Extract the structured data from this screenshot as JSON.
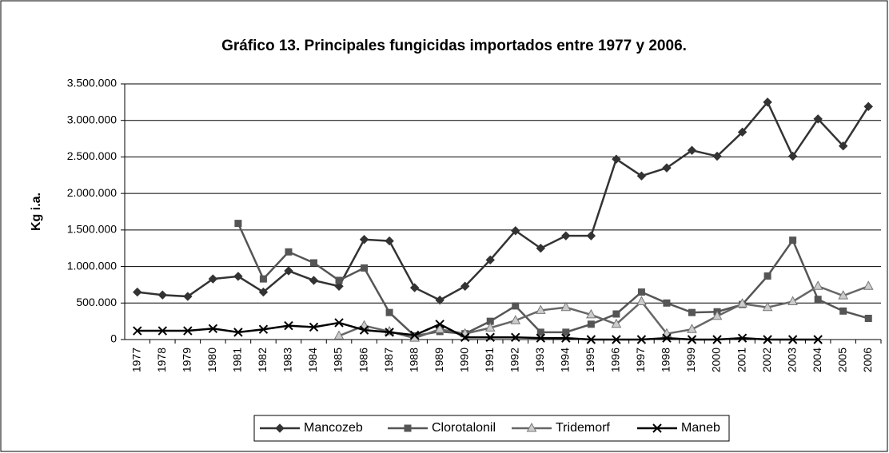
{
  "chart_data": {
    "type": "line",
    "title": "Gráfico 13. Principales fungicidas importados entre 1977 y 2006.",
    "y_label": "Kg i.a.",
    "categories": [
      "1977",
      "1978",
      "1979",
      "1980",
      "1981",
      "1982",
      "1983",
      "1984",
      "1985",
      "1986",
      "1987",
      "1988",
      "1989",
      "1990",
      "1991",
      "1992",
      "1993",
      "1994",
      "1995",
      "1996",
      "1997",
      "1998",
      "1999",
      "2000",
      "2001",
      "2002",
      "2003",
      "2004",
      "2005",
      "2006"
    ],
    "series": [
      {
        "name": "Mancozeb",
        "color": "#333333",
        "marker": "diamond",
        "marker_fill": "#333333",
        "values": [
          650000,
          610000,
          590000,
          830000,
          865000,
          650000,
          940000,
          810000,
          730000,
          1370000,
          1350000,
          710000,
          540000,
          730000,
          1090000,
          1490000,
          1250000,
          1420000,
          1420000,
          2470000,
          2240000,
          2350000,
          2590000,
          2510000,
          2840000,
          3250000,
          2510000,
          3020000,
          2650000,
          3190000
        ]
      },
      {
        "name": "Clorotalonil",
        "color": "#555555",
        "marker": "square",
        "marker_fill": "#555555",
        "values": [
          null,
          null,
          null,
          null,
          1590000,
          830000,
          1200000,
          1050000,
          810000,
          980000,
          370000,
          50000,
          110000,
          80000,
          250000,
          460000,
          100000,
          100000,
          210000,
          350000,
          650000,
          500000,
          370000,
          380000,
          480000,
          870000,
          1360000,
          550000,
          390000,
          290000
        ]
      },
      {
        "name": "Tridemorf",
        "color": "#666666",
        "marker": "triangle",
        "marker_fill": "#cccccc",
        "values": [
          null,
          null,
          null,
          null,
          null,
          null,
          null,
          null,
          50000,
          190000,
          110000,
          20000,
          140000,
          80000,
          160000,
          260000,
          400000,
          440000,
          340000,
          210000,
          520000,
          80000,
          140000,
          320000,
          490000,
          440000,
          520000,
          730000,
          600000,
          730000
        ]
      },
      {
        "name": "Maneb",
        "color": "#000000",
        "marker": "x",
        "marker_fill": "none",
        "values": [
          120000,
          120000,
          120000,
          150000,
          100000,
          140000,
          190000,
          170000,
          230000,
          130000,
          100000,
          60000,
          210000,
          30000,
          30000,
          30000,
          20000,
          20000,
          0,
          0,
          0,
          20000,
          0,
          0,
          20000,
          0,
          0,
          0,
          null,
          null
        ]
      }
    ],
    "ylim": [
      0,
      3500000
    ],
    "yticks": [
      0,
      {
        "value": 500000,
        "label": "500.000"
      },
      {
        "value": 1000000,
        "label": "1.000.000"
      },
      {
        "value": 1500000,
        "label": "1.500.000"
      },
      {
        "value": 2000000,
        "label": "2.000.000"
      },
      {
        "value": 2500000,
        "label": "2.500.000"
      },
      {
        "value": 3000000,
        "label": "3.000.000"
      },
      {
        "value": 3500000,
        "label": "3.500.000"
      }
    ],
    "grid": true,
    "legend": "bottom"
  }
}
